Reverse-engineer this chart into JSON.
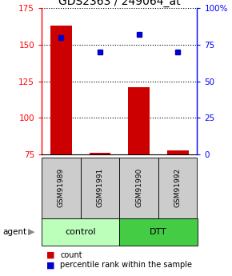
{
  "title": "GDS2363 / 249064_at",
  "samples": [
    "GSM91989",
    "GSM91991",
    "GSM91990",
    "GSM91992"
  ],
  "bar_values": [
    163,
    76,
    121,
    78
  ],
  "percentile_values": [
    80,
    70,
    82,
    70
  ],
  "ylim_left": [
    75,
    175
  ],
  "ylim_right": [
    0,
    100
  ],
  "yticks_left": [
    75,
    100,
    125,
    150,
    175
  ],
  "yticks_right": [
    0,
    25,
    50,
    75,
    100
  ],
  "ytick_labels_right": [
    "0",
    "25",
    "50",
    "75",
    "100%"
  ],
  "bar_color": "#cc0000",
  "dot_color": "#0000cc",
  "groups": [
    {
      "label": "control",
      "samples": [
        0,
        1
      ],
      "color": "#bbffbb"
    },
    {
      "label": "DTT",
      "samples": [
        2,
        3
      ],
      "color": "#44cc44"
    }
  ],
  "sample_box_color": "#cccccc",
  "legend_items": [
    {
      "color": "#cc0000",
      "label": "count"
    },
    {
      "color": "#0000cc",
      "label": "percentile rank within the sample"
    }
  ],
  "agent_label": "agent",
  "title_fontsize": 10,
  "tick_fontsize": 7.5,
  "sample_fontsize": 6.5,
  "group_fontsize": 8,
  "legend_fontsize": 7
}
